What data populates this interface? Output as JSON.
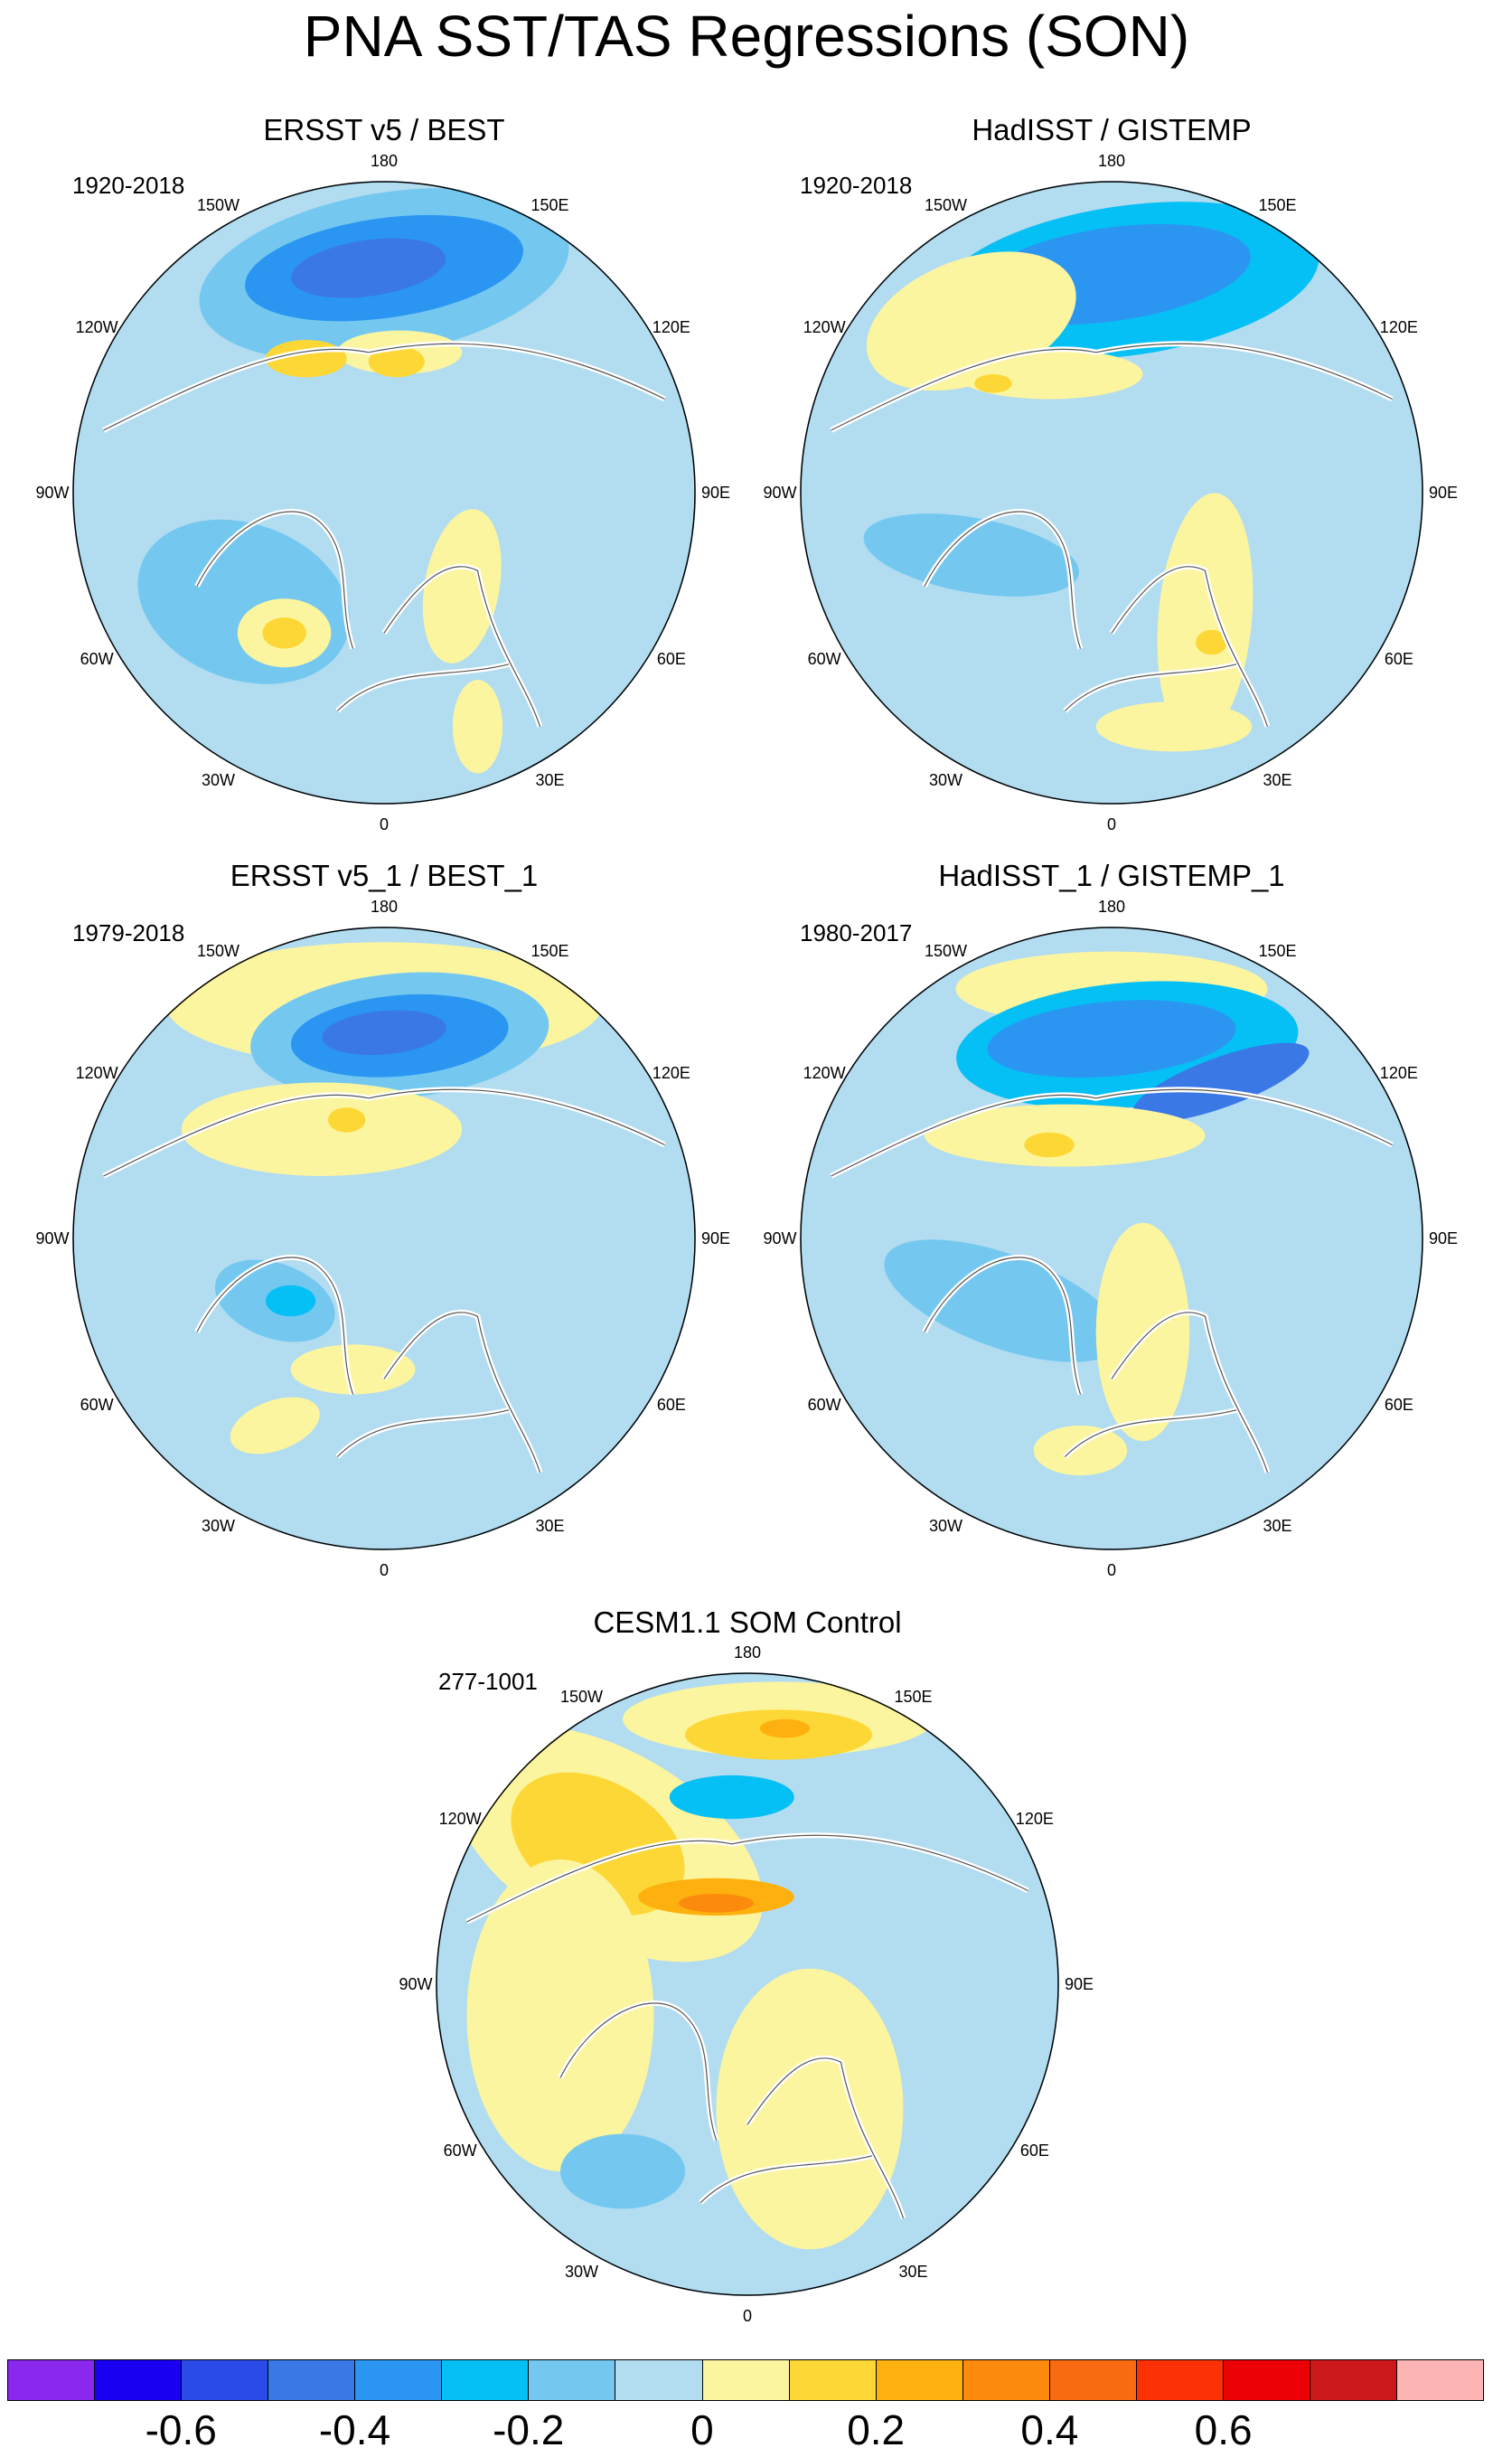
{
  "title": "PNA SST/TAS Regressions (SON)",
  "panels": [
    {
      "name": "panel-ersst-best",
      "title": "ERSST v5 / BEST",
      "period": "1920-2018"
    },
    {
      "name": "panel-hadisst-gistemp",
      "title": "HadISST / GISTEMP",
      "period": "1920-2018"
    },
    {
      "name": "panel-ersst1-best1",
      "title": "ERSST v5_1 / BEST_1",
      "period": "1979-2018"
    },
    {
      "name": "panel-hadisst1-gistemp1",
      "title": "HadISST_1 / GISTEMP_1",
      "period": "1980-2017"
    },
    {
      "name": "panel-cesm",
      "title": "CESM1.1 SOM Control",
      "period": "277-1001"
    }
  ],
  "longitude_labels": [
    "180",
    "150E",
    "120E",
    "90E",
    "60E",
    "30E",
    "0",
    "30W",
    "60W",
    "90W",
    "120W",
    "150W"
  ],
  "colorbar": {
    "colors": [
      "#8a28ee",
      "#1a00f0",
      "#2a4be8",
      "#3a78e6",
      "#2a96f2",
      "#05c0f5",
      "#74c8f0",
      "#b2dcf0",
      "#fcf5a0",
      "#fdd735",
      "#fdb00e",
      "#fc8a0c",
      "#fa6a10",
      "#fc3005",
      "#ea0005",
      "#cc181b",
      "#fcb4b4"
    ],
    "tick_labels": [
      "-0.6",
      "-0.4",
      "-0.2",
      "0",
      "0.2",
      "0.4",
      "0.6"
    ]
  }
}
